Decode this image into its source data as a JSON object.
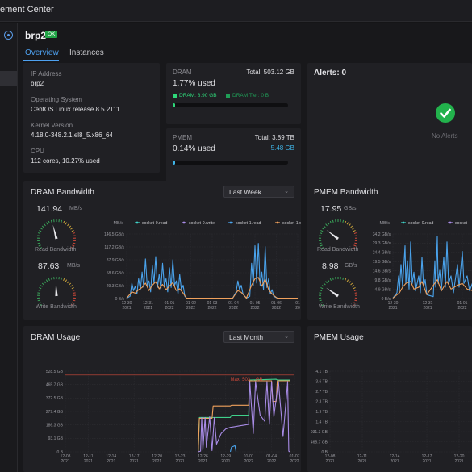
{
  "app": {
    "title": "ement Center"
  },
  "host": {
    "name": "brp2",
    "status": "OK"
  },
  "tabs": [
    {
      "label": "Overview"
    },
    {
      "label": "Instances"
    }
  ],
  "system": {
    "ip_label": "IP Address",
    "ip_value": "brp2",
    "os_label": "Operating System",
    "os_value": "CentOS Linux release 8.5.2111",
    "kernel_label": "Kernel Version",
    "kernel_value": "4.18.0-348.2.1.el8_5.x86_64",
    "cpu_label": "CPU",
    "cpu_value": "112 cores, 10.27% used"
  },
  "dram": {
    "label": "DRAM",
    "total": "Total: 503.12 GB",
    "used": "1.77% used",
    "used_fraction": 0.0177,
    "legend_dram": "DRAM: 8.90 GB",
    "legend_tier": "DRAM Tier: 0 B",
    "color": "#2ed87a",
    "tier_color": "#1f9e57"
  },
  "pmem": {
    "label": "PMEM",
    "total": "Total: 3.89 TB",
    "used": "0.14% used",
    "amount": "5.48 GB",
    "used_fraction": 0.0014,
    "color": "#3fb3e6"
  },
  "alerts": {
    "title": "Alerts: 0",
    "empty_text": "No Alerts",
    "icon": "check-circle-icon",
    "color": "#22b24c"
  },
  "dram_bw": {
    "title": "DRAM Bandwidth",
    "range": "Last Week",
    "read_value": "141.94",
    "read_unit": "MB/s",
    "read_label": "Read Bandwidth",
    "read_level": 0.44,
    "write_value": "87.63",
    "write_unit": "MB/s",
    "write_label": "Write Bandwidth",
    "write_level": 0.49
  },
  "pmem_bw": {
    "title": "PMEM Bandwidth",
    "read_value": "17.95",
    "read_unit": "GB/s",
    "read_label": "Read Bandwidth",
    "read_level": 0.28,
    "write_value": "8.98",
    "write_unit": "GB/s",
    "write_label": "Write Bandwidth",
    "write_level": 0.27
  },
  "dram_usage": {
    "title": "DRAM Usage",
    "range": "Last Month"
  },
  "pmem_usage": {
    "title": "PMEM Usage"
  },
  "chart_data": [
    {
      "type": "line",
      "title": "DRAM Bandwidth",
      "ylabel": "MB/s",
      "yticks": [
        "0 B/s",
        "29.3 GB/s",
        "58.6 GB/s",
        "87.9 GB/s",
        "117.2 GB/s",
        "146.5 GB/s"
      ],
      "ylim": [
        0,
        146.5
      ],
      "xticks": [
        "12-30\n2021",
        "12-31\n2021",
        "01-01\n2022",
        "01-02\n2022",
        "01-03\n2022",
        "01-04\n2022",
        "01-05\n2022",
        "01-06\n2022",
        "01\n20"
      ],
      "legend": [
        {
          "name": "socket-0.read",
          "color": "#3fd0c6"
        },
        {
          "name": "socket-0.write",
          "color": "#a88be6"
        },
        {
          "name": "socket-1.read",
          "color": "#4aa3ec"
        },
        {
          "name": "socket-1.write",
          "color": "#f0a15c"
        }
      ],
      "series": [
        {
          "name": "socket-1.read",
          "unit": "GB/s",
          "points": [
            [
              0.0,
              1
            ],
            [
              0.02,
              5
            ],
            [
              0.03,
              35
            ],
            [
              0.04,
              18
            ],
            [
              0.05,
              28
            ],
            [
              0.06,
              10
            ],
            [
              0.07,
              45
            ],
            [
              0.08,
              20
            ],
            [
              0.09,
              60
            ],
            [
              0.1,
              25
            ],
            [
              0.11,
              90
            ],
            [
              0.12,
              30
            ],
            [
              0.13,
              40
            ],
            [
              0.14,
              15
            ],
            [
              0.15,
              75
            ],
            [
              0.16,
              35
            ],
            [
              0.17,
              95
            ],
            [
              0.18,
              25
            ],
            [
              0.19,
              55
            ],
            [
              0.2,
              20
            ],
            [
              0.21,
              80
            ],
            [
              0.22,
              30
            ],
            [
              0.23,
              45
            ],
            [
              0.24,
              15
            ],
            [
              0.25,
              70
            ],
            [
              0.26,
              25
            ],
            [
              0.27,
              88
            ],
            [
              0.28,
              30
            ],
            [
              0.29,
              40
            ],
            [
              0.3,
              10
            ],
            [
              0.31,
              55
            ],
            [
              0.32,
              20
            ],
            [
              0.33,
              30
            ],
            [
              0.34,
              5
            ],
            [
              0.35,
              1
            ],
            [
              0.45,
              1
            ],
            [
              0.62,
              1
            ],
            [
              0.64,
              15
            ],
            [
              0.65,
              40
            ],
            [
              0.66,
              20
            ],
            [
              0.67,
              30
            ],
            [
              0.68,
              10
            ],
            [
              0.7,
              1
            ],
            [
              0.72,
              5
            ],
            [
              0.73,
              80
            ],
            [
              0.74,
              30
            ],
            [
              0.75,
              120
            ],
            [
              0.76,
              35
            ],
            [
              0.77,
              125
            ],
            [
              0.78,
              30
            ],
            [
              0.79,
              60
            ],
            [
              0.8,
              20
            ],
            [
              0.81,
              118
            ],
            [
              0.82,
              25
            ],
            [
              0.83,
              45
            ],
            [
              0.84,
              10
            ],
            [
              0.85,
              20
            ],
            [
              0.86,
              5
            ],
            [
              0.88,
              1
            ],
            [
              1.0,
              1
            ]
          ]
        },
        {
          "name": "socket-1.write",
          "unit": "GB/s",
          "points": [
            [
              0.0,
              1
            ],
            [
              0.03,
              15
            ],
            [
              0.05,
              12
            ],
            [
              0.07,
              20
            ],
            [
              0.09,
              25
            ],
            [
              0.11,
              35
            ],
            [
              0.13,
              18
            ],
            [
              0.15,
              30
            ],
            [
              0.17,
              38
            ],
            [
              0.19,
              22
            ],
            [
              0.21,
              32
            ],
            [
              0.23,
              20
            ],
            [
              0.25,
              28
            ],
            [
              0.27,
              36
            ],
            [
              0.29,
              18
            ],
            [
              0.31,
              22
            ],
            [
              0.33,
              12
            ],
            [
              0.35,
              1
            ],
            [
              0.62,
              1
            ],
            [
              0.65,
              18
            ],
            [
              0.67,
              14
            ],
            [
              0.7,
              1
            ],
            [
              0.73,
              30
            ],
            [
              0.75,
              45
            ],
            [
              0.77,
              48
            ],
            [
              0.79,
              28
            ],
            [
              0.81,
              44
            ],
            [
              0.83,
              20
            ],
            [
              0.85,
              10
            ],
            [
              0.88,
              1
            ],
            [
              1.0,
              1
            ]
          ]
        }
      ]
    },
    {
      "type": "line",
      "title": "PMEM Bandwidth",
      "ylabel": "MB/s",
      "yticks": [
        "0 B/s",
        "4.9 GB/s",
        "9.8 GB/s",
        "14.6 GB/s",
        "19.5 GB/s",
        "24.4 GB/s",
        "29.3 GB/s",
        "34.2 GB/s"
      ],
      "ylim": [
        0,
        34.2
      ],
      "xticks": [
        "12-30\n2021",
        "12-31\n2021",
        "01-01\n2022",
        "01-02\n2022",
        "01-03\n2022"
      ],
      "legend": [
        {
          "name": "socket-0.read",
          "color": "#3fd0c6"
        },
        {
          "name": "socket-",
          "color": "#a88be6"
        }
      ],
      "series": [
        {
          "name": "socket-1.read",
          "unit": "GB/s",
          "points": [
            [
              0.0,
              0.2
            ],
            [
              0.05,
              3
            ],
            [
              0.07,
              12
            ],
            [
              0.08,
              4
            ],
            [
              0.1,
              18
            ],
            [
              0.12,
              6
            ],
            [
              0.15,
              28
            ],
            [
              0.16,
              8
            ],
            [
              0.18,
              20
            ],
            [
              0.2,
              5
            ],
            [
              0.22,
              30
            ],
            [
              0.24,
              8
            ],
            [
              0.26,
              14
            ],
            [
              0.28,
              4
            ],
            [
              0.32,
              12
            ],
            [
              0.34,
              3
            ],
            [
              0.36,
              22
            ],
            [
              0.38,
              6
            ],
            [
              0.4,
              10
            ],
            [
              0.42,
              2
            ],
            [
              0.5,
              1
            ],
            [
              0.52,
              20
            ],
            [
              0.53,
              6
            ],
            [
              0.55,
              33
            ],
            [
              0.56,
              8
            ],
            [
              0.58,
              15
            ],
            [
              0.6,
              4
            ],
            [
              0.63,
              22
            ],
            [
              0.65,
              6
            ],
            [
              0.67,
              30
            ],
            [
              0.69,
              8
            ],
            [
              0.72,
              12
            ],
            [
              0.75,
              3
            ],
            [
              0.8,
              18
            ],
            [
              0.82,
              6
            ],
            [
              0.86,
              25
            ],
            [
              0.88,
              8
            ],
            [
              0.92,
              12
            ],
            [
              0.95,
              4
            ],
            [
              1.0,
              10
            ]
          ]
        },
        {
          "name": "socket-1.write",
          "unit": "GB/s",
          "points": [
            [
              0.0,
              0.2
            ],
            [
              0.08,
              3
            ],
            [
              0.12,
              6
            ],
            [
              0.16,
              8
            ],
            [
              0.22,
              9
            ],
            [
              0.26,
              5
            ],
            [
              0.32,
              6
            ],
            [
              0.36,
              9
            ],
            [
              0.42,
              2
            ],
            [
              0.55,
              10
            ],
            [
              0.6,
              4
            ],
            [
              0.67,
              9
            ],
            [
              0.72,
              5
            ],
            [
              0.8,
              7
            ],
            [
              0.86,
              8
            ],
            [
              0.92,
              5
            ],
            [
              1.0,
              4
            ]
          ]
        }
      ]
    },
    {
      "type": "line",
      "title": "DRAM Usage",
      "yticks": [
        "0 B",
        "93.1 GB",
        "186.3 GB",
        "279.4 GB",
        "372.5 GB",
        "465.7 GB",
        "528.5 GB"
      ],
      "ylim": [
        0,
        528.5
      ],
      "xticks": [
        "12-08\n2021",
        "12-11\n2021",
        "12-14\n2021",
        "12-17\n2021",
        "12-20\n2021",
        "12-23\n2021",
        "12-26\n2021",
        "12-29\n2021",
        "01-01\n2022",
        "01-04\n2022",
        "01-07\n2022"
      ],
      "max_label": "Max: 503.1 GB",
      "max_value": 503.1,
      "series": [
        {
          "name": "green",
          "color": "#3fd08a",
          "points": [
            [
              0.58,
              0
            ],
            [
              0.585,
              225
            ],
            [
              0.72,
              225
            ],
            [
              0.725,
              240
            ],
            [
              0.8,
              240
            ],
            [
              0.805,
              470
            ],
            [
              0.92,
              475
            ],
            [
              0.925,
              470
            ],
            [
              0.98,
              470
            ]
          ]
        },
        {
          "name": "orange",
          "color": "#f0a15c",
          "points": [
            [
              0.58,
              0
            ],
            [
              0.585,
              220
            ],
            [
              0.64,
              220
            ],
            [
              0.645,
              300
            ],
            [
              0.72,
              300
            ],
            [
              0.725,
              305
            ],
            [
              0.8,
              305
            ],
            [
              0.805,
              465
            ],
            [
              0.9,
              465
            ],
            [
              0.905,
              330
            ],
            [
              0.92,
              330
            ],
            [
              0.925,
              465
            ],
            [
              0.98,
              465
            ]
          ]
        },
        {
          "name": "purple",
          "color": "#a88be6",
          "points": [
            [
              0.58,
              0
            ],
            [
              0.59,
              5
            ],
            [
              0.595,
              225
            ],
            [
              0.6,
              10
            ],
            [
              0.61,
              225
            ],
            [
              0.615,
              30
            ],
            [
              0.63,
              230
            ],
            [
              0.64,
              8
            ],
            [
              0.65,
              225
            ],
            [
              0.66,
              50
            ],
            [
              0.68,
              120
            ],
            [
              0.7,
              150
            ],
            [
              0.72,
              160
            ],
            [
              0.74,
              165
            ],
            [
              0.76,
              170
            ],
            [
              0.78,
              175
            ],
            [
              0.8,
              180
            ],
            [
              0.805,
              460
            ],
            [
              0.82,
              120
            ],
            [
              0.83,
              460
            ],
            [
              0.85,
              240
            ],
            [
              0.87,
              200
            ],
            [
              0.88,
              460
            ],
            [
              0.89,
              180
            ],
            [
              0.9,
              460
            ],
            [
              0.91,
              230
            ],
            [
              0.93,
              460
            ],
            [
              0.95,
              100
            ],
            [
              0.97,
              460
            ],
            [
              0.975,
              5
            ],
            [
              0.98,
              0
            ]
          ]
        },
        {
          "name": "blue",
          "color": "#4aa3ec",
          "points": [
            [
              0.72,
              0
            ],
            [
              0.725,
              30
            ],
            [
              0.74,
              40
            ],
            [
              0.745,
              0
            ]
          ]
        }
      ]
    },
    {
      "type": "line",
      "title": "PMEM Usage",
      "yticks": [
        "0 B",
        "465.7 GB",
        "931.3 GB",
        "1.4 TB",
        "1.9 TB",
        "2.3 TB",
        "2.7 TB",
        "3.6 TB",
        "4.1 TB"
      ],
      "ylim": [
        0,
        4.1
      ],
      "xticks": [
        "12-08\n2021",
        "12-11\n2021",
        "12-14\n2021",
        "12-17\n2021",
        "12-20\n2021",
        "12-23\n2021"
      ],
      "series": []
    }
  ]
}
